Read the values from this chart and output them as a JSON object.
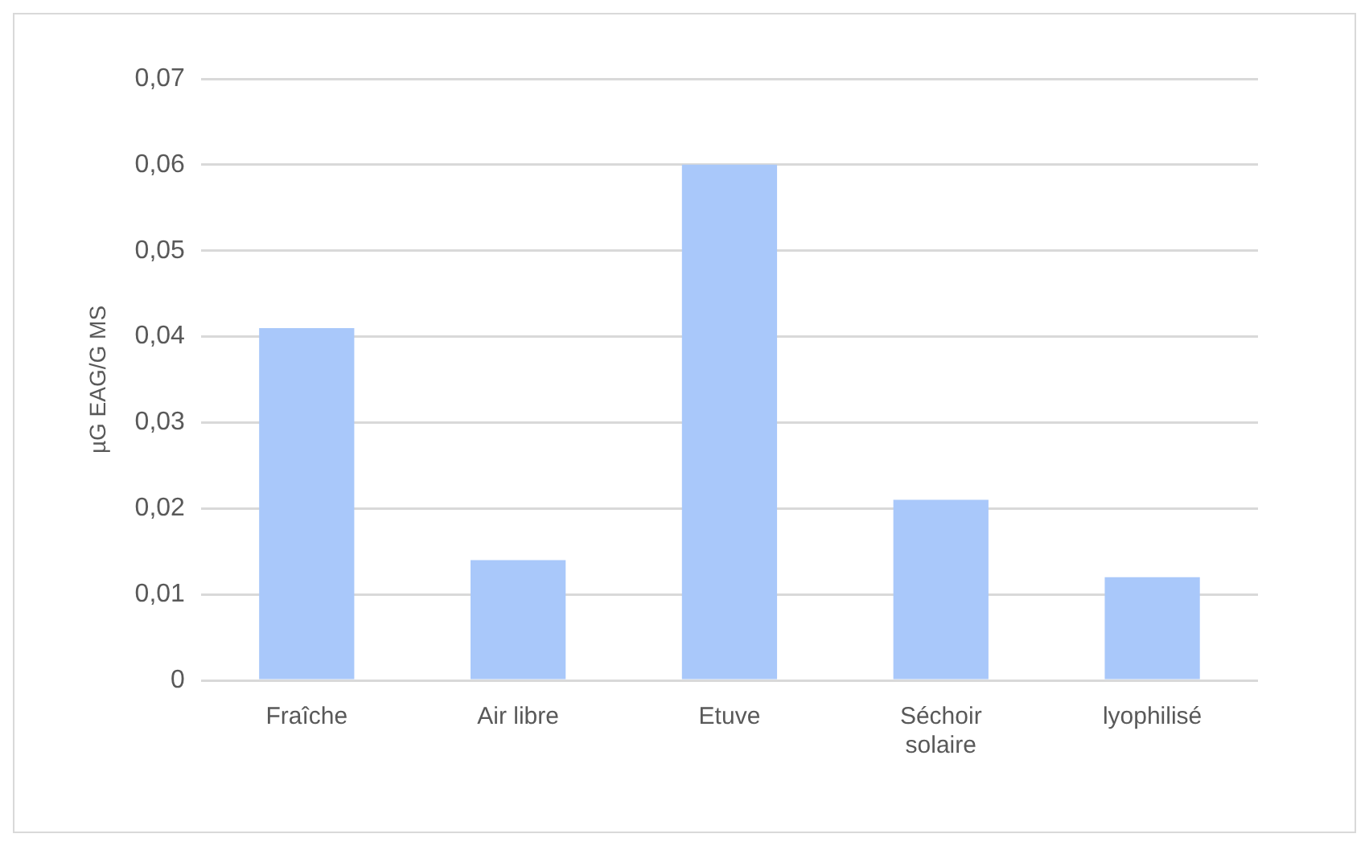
{
  "chart_data": {
    "type": "bar",
    "ylabel": "µG EAG/G MS",
    "categories": [
      "Fraîche",
      "Air libre",
      "Etuve",
      "Séchoir solaire",
      "lyophilisé"
    ],
    "values": [
      0.041,
      0.014,
      0.06,
      0.021,
      0.012
    ],
    "color": "#a9c8fa",
    "ylim": [
      0,
      0.07
    ],
    "yticks": [
      0,
      {
        "value": 0.01,
        "label": "0,01"
      },
      {
        "value": 0.02,
        "label": "0,02"
      },
      {
        "value": 0.03,
        "label": "0,03"
      },
      {
        "value": 0.04,
        "label": "0,04"
      },
      {
        "value": 0.05,
        "label": "0,05"
      },
      {
        "value": 0.06,
        "label": "0,06"
      },
      {
        "value": 0.07,
        "label": "0,07"
      }
    ],
    "grid": true
  }
}
